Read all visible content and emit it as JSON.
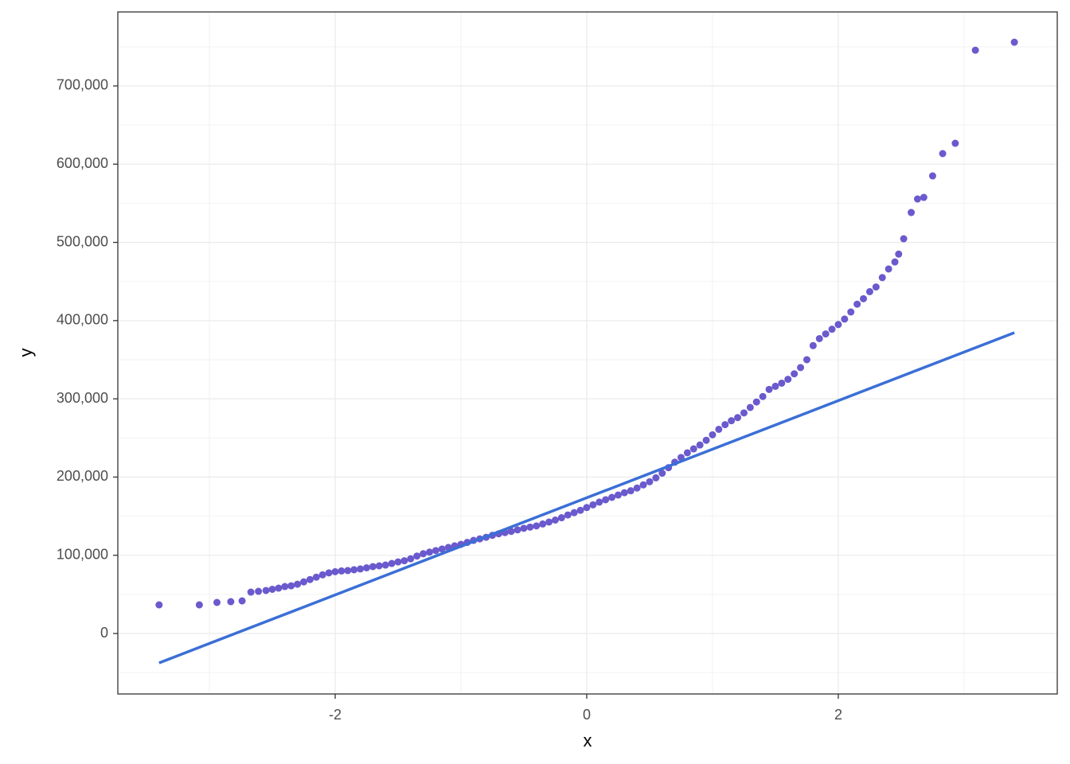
{
  "chart_data": {
    "type": "scatter",
    "x_label": "x",
    "y_label": "y",
    "xlim": [
      -3.728,
      3.741
    ],
    "ylim": [
      -77300,
      794600
    ],
    "xticks": [
      -2,
      0,
      2
    ],
    "yticks": [
      0,
      {
        "value": 100000,
        "label": "100,000"
      },
      {
        "value": 200000,
        "label": "200,000"
      },
      {
        "value": 300000,
        "label": "300,000"
      },
      {
        "value": 400000,
        "label": "400,000"
      },
      {
        "value": 500000,
        "label": "500,000"
      },
      {
        "value": 600000,
        "label": "600,000"
      },
      {
        "value": 700000,
        "label": "700,000"
      }
    ],
    "x_minor_grid": [
      -3,
      -1,
      1,
      3
    ],
    "y_minor_grid": [
      -50000,
      50000,
      150000,
      250000,
      350000,
      450000,
      550000,
      650000,
      750000
    ],
    "grid": true,
    "series": [
      {
        "type": "scatter",
        "color": "#6a5acd",
        "x": [
          -3.4,
          -3.08,
          -2.94,
          -2.83,
          -2.74,
          -2.67,
          -2.61,
          -2.55,
          -2.5,
          -2.45,
          -2.4,
          -2.35,
          -2.3,
          -2.25,
          -2.2,
          -2.15,
          -2.1,
          -2.05,
          -2.0,
          -1.95,
          -1.9,
          -1.85,
          -1.8,
          -1.75,
          -1.7,
          -1.65,
          -1.6,
          -1.55,
          -1.5,
          -1.45,
          -1.4,
          -1.35,
          -1.3,
          -1.25,
          -1.2,
          -1.15,
          -1.1,
          -1.05,
          -1.0,
          -0.95,
          -0.9,
          -0.85,
          -0.8,
          -0.75,
          -0.7,
          -0.65,
          -0.6,
          -0.55,
          -0.5,
          -0.45,
          -0.4,
          -0.35,
          -0.3,
          -0.25,
          -0.2,
          -0.15,
          -0.1,
          -0.05,
          0.0,
          0.05,
          0.1,
          0.15,
          0.2,
          0.25,
          0.3,
          0.35,
          0.4,
          0.45,
          0.5,
          0.55,
          0.6,
          0.65,
          0.7,
          0.75,
          0.8,
          0.85,
          0.9,
          0.95,
          1.0,
          1.05,
          1.1,
          1.15,
          1.2,
          1.25,
          1.3,
          1.35,
          1.4,
          1.45,
          1.5,
          1.55,
          1.6,
          1.65,
          1.7,
          1.75,
          1.8,
          1.85,
          1.9,
          1.95,
          2.0,
          2.05,
          2.1,
          2.15,
          2.2,
          2.25,
          2.3,
          2.35,
          2.4,
          2.45,
          2.48,
          2.52,
          2.58,
          2.63,
          2.68,
          2.75,
          2.83,
          2.93,
          3.09,
          3.4
        ],
        "values": [
          36600,
          36600,
          39700,
          40700,
          41700,
          52900,
          53900,
          55000,
          56500,
          58000,
          60000,
          61000,
          63000,
          66000,
          69000,
          72000,
          75000,
          77500,
          79000,
          80000,
          80500,
          81500,
          82500,
          84000,
          85500,
          86500,
          87500,
          89500,
          91500,
          93000,
          95500,
          99000,
          102000,
          104000,
          106000,
          108000,
          110000,
          112000,
          114000,
          116500,
          119000,
          121000,
          123000,
          125500,
          127500,
          129000,
          130500,
          132500,
          134500,
          136000,
          137500,
          140000,
          142500,
          145000,
          148000,
          151500,
          154500,
          157500,
          161000,
          164500,
          168000,
          171000,
          174000,
          177000,
          180000,
          182500,
          186000,
          190000,
          194000,
          199000,
          205000,
          212000,
          219000,
          225000,
          231000,
          236000,
          241000,
          247000,
          254000,
          261000,
          267000,
          272000,
          276000,
          282000,
          289000,
          296000,
          303000,
          312000,
          316000,
          320000,
          325000,
          332000,
          340000,
          350000,
          368000,
          377000,
          383000,
          389000,
          395000,
          402000,
          411000,
          421000,
          428000,
          437000,
          443000,
          455000,
          466000,
          475000,
          485000,
          504600,
          538200,
          555500,
          557500,
          585000,
          613500,
          626700,
          745700,
          755900
        ]
      },
      {
        "type": "line",
        "color": "#3b6fd6",
        "x": [
          -3.4,
          3.4
        ],
        "values": [
          -37600,
          384600
        ]
      }
    ]
  }
}
